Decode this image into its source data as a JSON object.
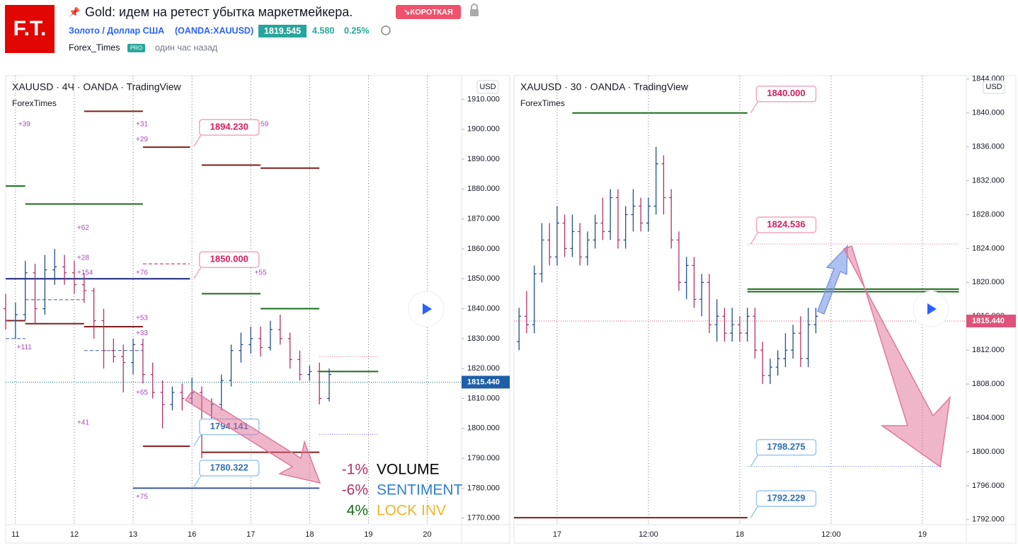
{
  "header": {
    "logo": "F.T.",
    "title": "Gold: идем на ретест убытка маркетмейкера.",
    "badge": "↘КОРОТКАЯ",
    "symbol_name": "Золото / Доллар США",
    "symbol": "(OANDA:XAUUSD)",
    "price": "1819.545",
    "change": "4.580",
    "change_pct": "0.25%",
    "author": "Forex_Times",
    "author_badge": "PRO",
    "time": "один час назад"
  },
  "chart_data": [
    {
      "type": "ohlc",
      "title": "XAUUSD · 4Ч · OANDA · TradingView",
      "subtitle": "ForexTimes",
      "currency": "USD",
      "up_color": "#1e4f8c",
      "down_color": "#b0306a",
      "xlim": [
        -1,
        45.5
      ],
      "xticks": [
        {
          "value": 0,
          "label": "11"
        },
        {
          "value": 6,
          "label": "12"
        },
        {
          "value": 12,
          "label": "13"
        },
        {
          "value": 18,
          "label": "16"
        },
        {
          "value": 24,
          "label": "17"
        },
        {
          "value": 30,
          "label": "18"
        },
        {
          "value": 36,
          "label": "19"
        },
        {
          "value": 42,
          "label": "20"
        }
      ],
      "ylim": [
        1767.8,
        1917.9
      ],
      "yticks": [
        {
          "value": 1770,
          "label": "1770.000"
        },
        {
          "value": 1780,
          "label": "1780.000"
        },
        {
          "value": 1790,
          "label": "1790.000"
        },
        {
          "value": 1800,
          "label": "1800.000"
        },
        {
          "value": 1810,
          "label": "1810.000"
        },
        {
          "value": 1820,
          "label": "1820.000"
        },
        {
          "value": 1830,
          "label": "1830.000"
        },
        {
          "value": 1840,
          "label": "1840.000"
        },
        {
          "value": 1850,
          "label": "1850.000"
        },
        {
          "value": 1860,
          "label": "1860.000"
        },
        {
          "value": 1870,
          "label": "1870.000"
        },
        {
          "value": 1880,
          "label": "1880.000"
        },
        {
          "value": 1890,
          "label": "1890.000"
        },
        {
          "value": 1900,
          "label": "1900.000"
        },
        {
          "value": 1910,
          "label": "1910.000"
        }
      ],
      "x": [
        -1,
        0,
        1,
        2,
        3,
        4,
        5,
        6,
        7,
        8,
        9,
        10,
        11,
        12,
        13,
        14,
        15,
        16,
        17,
        18,
        19,
        20,
        21,
        22,
        23,
        24,
        25,
        26,
        27,
        28,
        29,
        30,
        31,
        32
      ],
      "bars": [
        [
          1840,
          1845,
          1833,
          1836
        ],
        [
          1836,
          1842,
          1830,
          1838
        ],
        [
          1838,
          1856,
          1836,
          1852
        ],
        [
          1852,
          1855,
          1835,
          1840
        ],
        [
          1840,
          1858,
          1838,
          1853
        ],
        [
          1853,
          1860,
          1848,
          1854
        ],
        [
          1854,
          1858,
          1848,
          1852
        ],
        [
          1852,
          1856,
          1845,
          1848
        ],
        [
          1848,
          1852,
          1842,
          1846
        ],
        [
          1846,
          1847,
          1830,
          1836
        ],
        [
          1836,
          1840,
          1820,
          1826
        ],
        [
          1826,
          1830,
          1822,
          1824
        ],
        [
          1824,
          1828,
          1812,
          1822
        ],
        [
          1822,
          1830,
          1818,
          1828
        ],
        [
          1828,
          1830,
          1815,
          1818
        ],
        [
          1818,
          1822,
          1810,
          1812
        ],
        [
          1812,
          1816,
          1800,
          1808
        ],
        [
          1808,
          1814,
          1806,
          1812
        ],
        [
          1812,
          1815,
          1806,
          1810
        ],
        [
          1810,
          1817,
          1808,
          1812
        ],
        [
          1812,
          1814,
          1790,
          1800
        ],
        [
          1800,
          1810,
          1798,
          1808
        ],
        [
          1808,
          1818,
          1806,
          1816
        ],
        [
          1816,
          1828,
          1814,
          1826
        ],
        [
          1826,
          1832,
          1822,
          1828
        ],
        [
          1828,
          1834,
          1825,
          1830
        ],
        [
          1830,
          1834,
          1824,
          1827
        ],
        [
          1827,
          1836,
          1826,
          1833
        ],
        [
          1833,
          1838,
          1828,
          1830
        ],
        [
          1830,
          1832,
          1820,
          1823
        ],
        [
          1823,
          1826,
          1816,
          1818
        ],
        [
          1818,
          1821,
          1816,
          1819
        ],
        [
          1819,
          1822,
          1808,
          1810
        ],
        [
          1810,
          1820,
          1809,
          1818
        ]
      ],
      "levels": [
        {
          "price": 1906,
          "from": 7,
          "to": 13,
          "color": "#7f1d1d",
          "style": "solid"
        },
        {
          "price": 1894,
          "from": 13,
          "to": 17.8,
          "color": "#7f1d1d",
          "style": "solid"
        },
        {
          "price": 1888,
          "from": 19,
          "to": 25,
          "color": "#7f1d1d",
          "style": "solid"
        },
        {
          "price": 1887,
          "from": 25,
          "to": 31,
          "color": "#7f1d1d",
          "style": "solid"
        },
        {
          "price": 1881,
          "from": -1,
          "to": 1,
          "color": "#1b6b1b",
          "style": "solid"
        },
        {
          "price": 1875,
          "from": 1,
          "to": 13,
          "color": "#1b6b1b",
          "style": "solid"
        },
        {
          "price": 1850,
          "from": -1,
          "to": 17.8,
          "color": "#1a237e",
          "style": "solid"
        },
        {
          "price": 1845,
          "from": 19,
          "to": 25,
          "color": "#1b6b1b",
          "style": "solid"
        },
        {
          "price": 1840,
          "from": 25,
          "to": 31,
          "color": "#1b6b1b",
          "style": "solid"
        },
        {
          "price": 1819,
          "from": 31,
          "to": 37,
          "color": "#1b6b1b",
          "style": "solid"
        },
        {
          "price": 1836,
          "from": -1,
          "to": 1,
          "color": "#7f1d1d",
          "style": "solid"
        },
        {
          "price": 1835,
          "from": 1,
          "to": 7,
          "color": "#7f1d1d",
          "style": "solid"
        },
        {
          "price": 1834,
          "from": 7,
          "to": 13,
          "color": "#7f1d1d",
          "style": "solid"
        },
        {
          "price": 1794,
          "from": 13,
          "to": 17.8,
          "color": "#7f1d1d",
          "style": "solid"
        },
        {
          "price": 1792,
          "from": 19,
          "to": 31,
          "color": "#7f1d1d",
          "style": "solid"
        },
        {
          "price": 1780,
          "from": 12,
          "to": 31,
          "color": "#3b5998",
          "style": "solid"
        },
        {
          "price": 1843,
          "from": 1,
          "to": 7,
          "color": "#3b5998",
          "style": "dashed"
        },
        {
          "price": 1826,
          "from": 7,
          "to": 13,
          "color": "#3b5998",
          "style": "dashed"
        },
        {
          "price": 1830,
          "from": -1,
          "to": 1,
          "color": "#3b5998",
          "style": "dashed"
        },
        {
          "price": 1855,
          "from": 13,
          "to": 17.8,
          "color": "#c2185b",
          "style": "dashed"
        },
        {
          "price": 1824,
          "from": 31,
          "to": 37,
          "color": "#e57399",
          "style": "dotted"
        },
        {
          "price": 1798,
          "from": 31,
          "to": 37,
          "color": "#7e57c2",
          "style": "dotted"
        }
      ],
      "annotations": [
        {
          "text": "+39",
          "x": 0.9,
          "price": 1901.6
        },
        {
          "text": "+31",
          "x": 12.9,
          "price": 1901.6
        },
        {
          "text": "+29",
          "x": 12.9,
          "price": 1896.6
        },
        {
          "text": "+59",
          "x": 25.2,
          "price": 1901.6
        },
        {
          "text": "+62",
          "x": 6.9,
          "price": 1867
        },
        {
          "text": "+28",
          "x": 6.9,
          "price": 1857
        },
        {
          "text": "+154",
          "x": 7.1,
          "price": 1852
        },
        {
          "text": "+76",
          "x": 12.9,
          "price": 1852
        },
        {
          "text": "+55",
          "x": 25,
          "price": 1852
        },
        {
          "text": "+53",
          "x": 12.9,
          "price": 1836.8
        },
        {
          "text": "+33",
          "x": 12.9,
          "price": 1831.8
        },
        {
          "text": "+111",
          "x": 0.9,
          "price": 1827
        },
        {
          "text": "+65",
          "x": 12.9,
          "price": 1811.9
        },
        {
          "text": "+41",
          "x": 6.9,
          "price": 1801.9
        },
        {
          "text": "+75",
          "x": 12.9,
          "price": 1777
        }
      ],
      "callouts": [
        {
          "value": 1894.23,
          "label": "1894.230",
          "x": 21.8,
          "color": "#d81b60"
        },
        {
          "value": 1850,
          "label": "1850.000",
          "x": 21.8,
          "color": "#d81b60"
        },
        {
          "value": 1794.141,
          "label": "1794.141",
          "x": 21.8,
          "color": "#2f6fb5"
        },
        {
          "value": 1780.322,
          "label": "1780.322",
          "x": 21.8,
          "color": "#2f6fb5"
        }
      ],
      "current": {
        "value": 1815.44,
        "label": "1815.440"
      },
      "legend": [
        {
          "value": "-1%",
          "name": "VOLUME"
        },
        {
          "value": "-6%",
          "name": "SENTIMENT"
        },
        {
          "value": "4%",
          "name": "LOCK INV"
        }
      ]
    },
    {
      "type": "ohlc",
      "title": "XAUUSD · 30 · OANDA · TradingView",
      "subtitle": "ForexTimes",
      "currency": "USD",
      "up_color": "#1e4f8c",
      "down_color": "#b0306a",
      "xlim": [
        -5.67,
        53.77
      ],
      "xticks": [
        {
          "value": 0,
          "label": "17"
        },
        {
          "value": 12,
          "label": "12:00"
        },
        {
          "value": 24,
          "label": "18"
        },
        {
          "value": 36,
          "label": "12:00"
        },
        {
          "value": 48,
          "label": "19"
        }
      ],
      "ylim": [
        1791.4,
        1844.4
      ],
      "yticks": [
        {
          "value": 1792,
          "label": "1792.000"
        },
        {
          "value": 1796,
          "label": "1796.000"
        },
        {
          "value": 1800,
          "label": "1800.000"
        },
        {
          "value": 1804,
          "label": "1804.000"
        },
        {
          "value": 1808,
          "label": "1808.000"
        },
        {
          "value": 1812,
          "label": "1812.000"
        },
        {
          "value": 1816,
          "label": "1816.000"
        },
        {
          "value": 1820,
          "label": "1820.000"
        },
        {
          "value": 1824,
          "label": "1824.000"
        },
        {
          "value": 1828,
          "label": "1828.000"
        },
        {
          "value": 1832,
          "label": "1832.000"
        },
        {
          "value": 1836,
          "label": "1836.000"
        },
        {
          "value": 1840,
          "label": "1840.000"
        },
        {
          "value": 1844,
          "label": "1844.000"
        }
      ],
      "x": [
        -5,
        -4,
        -3,
        -2,
        -1,
        0,
        1,
        2,
        3,
        4,
        5,
        6,
        7,
        8,
        9,
        10,
        11,
        12,
        13,
        14,
        15,
        16,
        17,
        18,
        19,
        20,
        21,
        22,
        23,
        24,
        25,
        26,
        27,
        28,
        29,
        30,
        31,
        32,
        33,
        34
      ],
      "bars": [
        [
          1813,
          1817,
          1812,
          1816
        ],
        [
          1816,
          1819,
          1814,
          1815
        ],
        [
          1815,
          1822,
          1814,
          1821
        ],
        [
          1821,
          1827,
          1820,
          1825
        ],
        [
          1825,
          1827,
          1822,
          1823
        ],
        [
          1823,
          1829,
          1822,
          1827
        ],
        [
          1827,
          1828,
          1823,
          1824
        ],
        [
          1824,
          1828,
          1823,
          1826
        ],
        [
          1826,
          1827,
          1822,
          1823
        ],
        [
          1823,
          1826,
          1822,
          1825
        ],
        [
          1825,
          1828,
          1824,
          1827
        ],
        [
          1827,
          1830,
          1825,
          1826
        ],
        [
          1826,
          1831,
          1825,
          1830
        ],
        [
          1830,
          1831,
          1824,
          1825
        ],
        [
          1825,
          1829,
          1824,
          1828
        ],
        [
          1828,
          1831,
          1826,
          1829
        ],
        [
          1829,
          1830,
          1826,
          1827
        ],
        [
          1827,
          1830,
          1826,
          1829
        ],
        [
          1829,
          1836,
          1828,
          1834
        ],
        [
          1834,
          1835,
          1828,
          1830
        ],
        [
          1830,
          1831,
          1824,
          1825
        ],
        [
          1825,
          1826,
          1819,
          1820
        ],
        [
          1820,
          1823,
          1818,
          1822
        ],
        [
          1822,
          1823,
          1817,
          1818
        ],
        [
          1818,
          1821,
          1816,
          1820
        ],
        [
          1820,
          1821,
          1814,
          1815
        ],
        [
          1815,
          1818,
          1813,
          1816
        ],
        [
          1816,
          1817,
          1813,
          1814
        ],
        [
          1814,
          1817,
          1813,
          1815
        ],
        [
          1815,
          1816,
          1813,
          1814
        ],
        [
          1814,
          1817,
          1813,
          1816
        ],
        [
          1816,
          1817,
          1811,
          1812
        ],
        [
          1812,
          1813,
          1808,
          1809
        ],
        [
          1809,
          1811,
          1808,
          1810
        ],
        [
          1810,
          1812,
          1809,
          1811
        ],
        [
          1811,
          1814,
          1810,
          1812
        ],
        [
          1812,
          1815,
          1811,
          1814
        ],
        [
          1814,
          1816,
          1810,
          1811
        ],
        [
          1811,
          1817,
          1810,
          1815
        ],
        [
          1815,
          1817,
          1814,
          1816
        ]
      ],
      "levels": [
        {
          "price": 1840,
          "from": 2,
          "to": 25,
          "color": "#1b6b1b",
          "style": "solid"
        },
        {
          "price": 1792.229,
          "from": -5.67,
          "to": 25,
          "color": "#7f1d1d",
          "style": "solid"
        },
        {
          "price": 1824.536,
          "from": 25,
          "to": 52.8,
          "color": "#e57399",
          "style": "dotted"
        },
        {
          "price": 1819.2,
          "from": 25,
          "to": 52.8,
          "color": "#1b6b1b",
          "style": "solid"
        },
        {
          "price": 1818.9,
          "from": 25,
          "to": 52.8,
          "color": "#1b6b1b",
          "style": "solid"
        },
        {
          "price": 1798.275,
          "from": 25,
          "to": 50.5,
          "color": "#5c6bc0",
          "style": "dotted"
        }
      ],
      "callouts": [
        {
          "value": 1840,
          "label": "1840.000",
          "x": 30.1,
          "color": "#d81b60"
        },
        {
          "value": 1824.536,
          "label": "1824.536",
          "x": 30.1,
          "color": "#d81b60"
        },
        {
          "value": 1798.275,
          "label": "1798.275",
          "x": 30.1,
          "color": "#2f6fb5"
        },
        {
          "value": 1792.229,
          "label": "1792.229",
          "x": 30.1,
          "color": "#2f6fb5"
        }
      ],
      "current": {
        "value": 1815.44,
        "label": "1815.440"
      }
    }
  ]
}
